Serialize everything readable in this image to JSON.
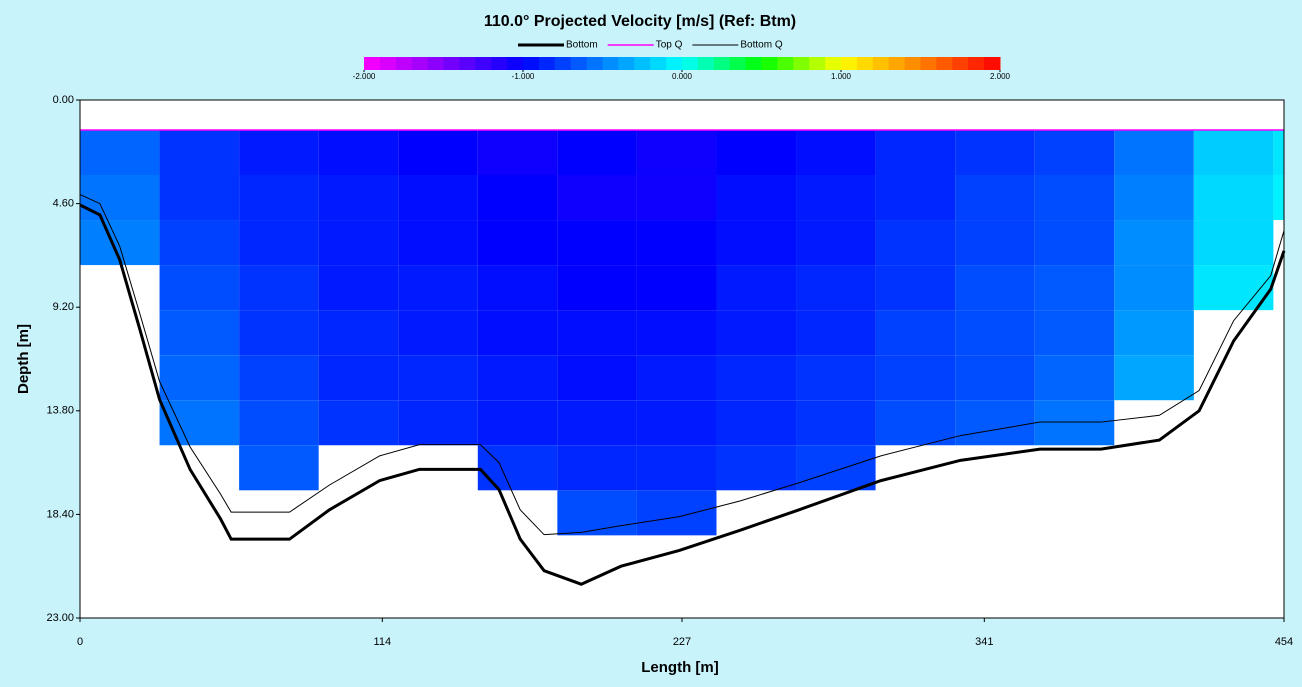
{
  "chart_data": {
    "type": "heatmap",
    "title": "110.0° Projected Velocity [m/s] (Ref: Btm)",
    "x_label": "Length [m]",
    "y_label": "Depth [m]",
    "xlim": [
      0,
      454
    ],
    "ylim": [
      0,
      23
    ],
    "y_inverted": true,
    "xticks": [
      0,
      114,
      227,
      341,
      454
    ],
    "yticks": [
      {
        "value": 0,
        "label": "0.00"
      },
      {
        "value": 4.6,
        "label": "4.60"
      },
      {
        "value": 9.2,
        "label": "9.20"
      },
      {
        "value": 13.8,
        "label": "13.80"
      },
      {
        "value": 18.4,
        "label": "18.40"
      },
      {
        "value": 23,
        "label": "23.00"
      }
    ],
    "colorbar": {
      "lim": [
        -2,
        2
      ],
      "ticks": [
        {
          "value": -2,
          "label": "-2.000"
        },
        {
          "value": -1,
          "label": "-1.000"
        },
        {
          "value": 0,
          "label": "0.000"
        },
        {
          "value": 1,
          "label": "1.000"
        },
        {
          "value": 2,
          "label": "2.000"
        }
      ],
      "colors": [
        "#ff00ff",
        "#8000ff",
        "#0000ff",
        "#0080ff",
        "#00ffff",
        "#00ff00",
        "#ffff00",
        "#ff8000",
        "#ff0000"
      ]
    },
    "field": {
      "x_edges": [
        0,
        30,
        60,
        90,
        120,
        150,
        180,
        210,
        240,
        270,
        300,
        330,
        360,
        390,
        420,
        450,
        454
      ],
      "depth_edges": [
        1.33,
        3.33,
        5.33,
        7.33,
        9.33,
        11.33,
        13.33,
        15.33,
        17.33,
        19.33
      ],
      "z": [
        [
          -0.6,
          -0.8,
          -0.9,
          -0.95,
          -1.0,
          -1.05,
          -1.0,
          -1.05,
          -1.0,
          -0.95,
          -0.85,
          -0.8,
          -0.75,
          -0.55,
          -0.2,
          -0.1
        ],
        [
          -0.55,
          -0.8,
          -0.85,
          -0.9,
          -0.95,
          -1.0,
          -1.05,
          -1.05,
          -0.95,
          -0.9,
          -0.85,
          -0.75,
          -0.7,
          -0.5,
          -0.15,
          -0.05
        ],
        [
          -0.5,
          -0.75,
          -0.85,
          -0.9,
          -0.95,
          -1.0,
          -1.0,
          -1.0,
          -0.95,
          -0.9,
          -0.8,
          -0.75,
          -0.7,
          -0.45,
          -0.15,
          null
        ],
        [
          null,
          -0.7,
          -0.8,
          -0.9,
          -0.9,
          -0.95,
          -1.0,
          -1.0,
          -0.9,
          -0.85,
          -0.8,
          -0.7,
          -0.65,
          -0.45,
          -0.1,
          null
        ],
        [
          null,
          -0.65,
          -0.8,
          -0.85,
          -0.9,
          -0.95,
          -0.95,
          -0.95,
          -0.9,
          -0.85,
          -0.75,
          -0.7,
          -0.65,
          -0.4,
          null,
          null
        ],
        [
          null,
          -0.6,
          -0.75,
          -0.85,
          -0.85,
          -0.9,
          -0.95,
          -0.9,
          -0.85,
          -0.8,
          -0.75,
          -0.7,
          -0.6,
          -0.35,
          null,
          null
        ],
        [
          null,
          -0.55,
          -0.7,
          -0.8,
          -0.85,
          -0.9,
          -0.9,
          -0.9,
          -0.85,
          -0.8,
          -0.7,
          -0.65,
          -0.55,
          null,
          null,
          null
        ],
        [
          null,
          null,
          -0.65,
          null,
          null,
          -0.8,
          -0.85,
          -0.85,
          -0.8,
          -0.75,
          null,
          null,
          null,
          null,
          null,
          null
        ],
        [
          null,
          null,
          null,
          null,
          null,
          null,
          -0.7,
          -0.75,
          null,
          null,
          null,
          null,
          null,
          null,
          null,
          null
        ]
      ]
    },
    "x": [
      0,
      7.5,
      15,
      22.6,
      30,
      41.5,
      53,
      57,
      79,
      94,
      113,
      128,
      151,
      158,
      166,
      175,
      189,
      204,
      226,
      249,
      271,
      302,
      332,
      362,
      385,
      407,
      422,
      435,
      449,
      454
    ],
    "series": [
      {
        "name": "Bottom",
        "color": "#000000",
        "width": 3,
        "values": [
          4.66,
          5.1,
          7.1,
          10.2,
          13.3,
          16.4,
          18.6,
          19.5,
          19.5,
          18.2,
          16.9,
          16.4,
          16.4,
          17.3,
          19.5,
          20.9,
          21.5,
          20.7,
          20.0,
          19.1,
          18.2,
          16.9,
          16.0,
          15.5,
          15.5,
          15.1,
          13.8,
          10.7,
          8.4,
          6.7
        ]
      },
      {
        "name": "Top Q",
        "color": "#ff00ff",
        "width": 1.5,
        "values": [
          1.33,
          1.33,
          1.33,
          1.33,
          1.33,
          1.33,
          1.33,
          1.33,
          1.33,
          1.33,
          1.33,
          1.33,
          1.33,
          1.33,
          1.33,
          1.33,
          1.33,
          1.33,
          1.33,
          1.33,
          1.33,
          1.33,
          1.33,
          1.33,
          1.33,
          1.33,
          1.33,
          1.33,
          1.33,
          1.33
        ]
      },
      {
        "name": "Bottom Q",
        "color": "#000000",
        "width": 1,
        "values": [
          4.2,
          4.6,
          6.5,
          9.5,
          12.5,
          15.4,
          17.5,
          18.3,
          18.3,
          17.1,
          15.8,
          15.3,
          15.3,
          16.1,
          18.2,
          19.3,
          19.2,
          18.9,
          18.5,
          17.8,
          17.0,
          15.8,
          14.9,
          14.3,
          14.3,
          14.0,
          12.9,
          9.8,
          7.8,
          5.8
        ]
      }
    ]
  }
}
